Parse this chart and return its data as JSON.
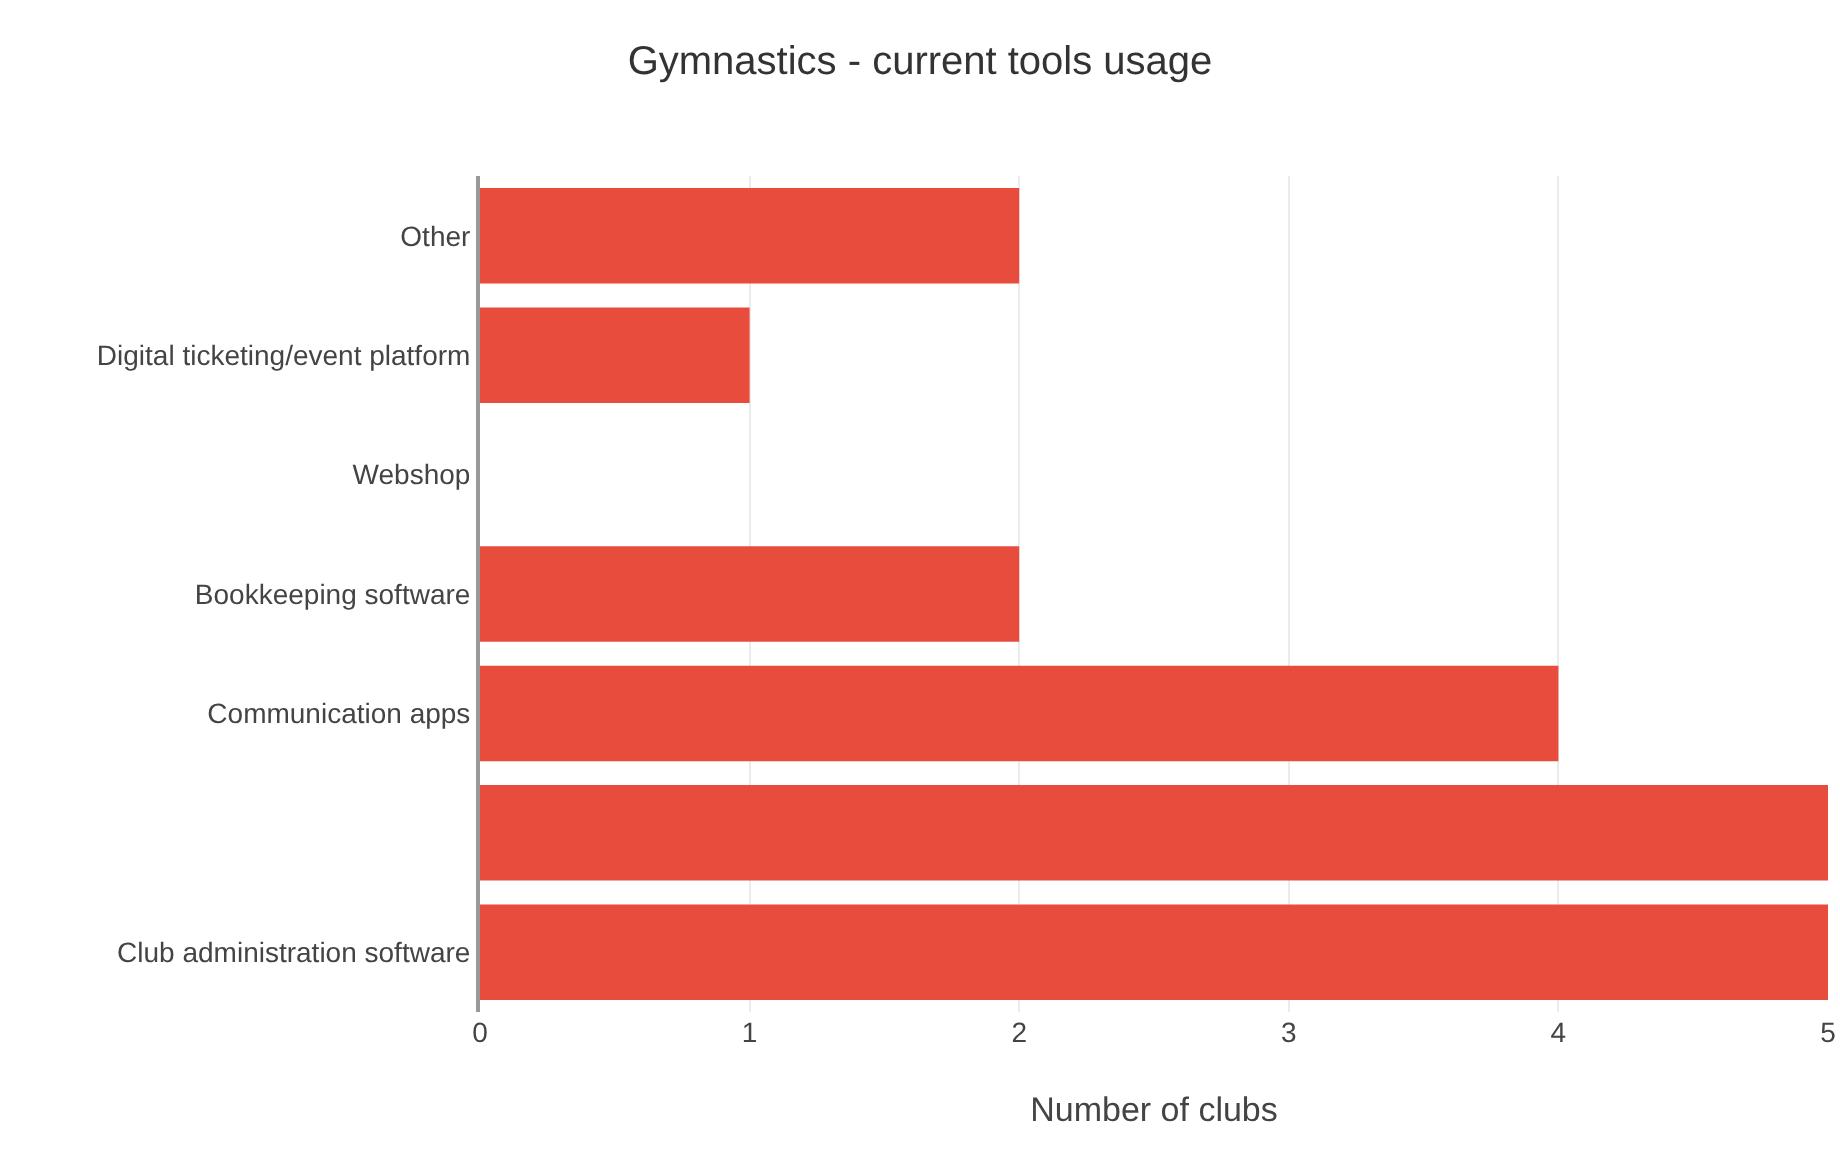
{
  "chart_data": {
    "type": "bar",
    "title": "Gymnastics - current tools usage",
    "xlabel": "Number of clubs",
    "orientation": "horizontal",
    "categories": [
      "Other",
      "Digital ticketing/event platform",
      "Webshop",
      "Bookkeeping software",
      "Communication apps",
      null,
      "Club administration software"
    ],
    "values": [
      2,
      1,
      0,
      2,
      4,
      5,
      5
    ],
    "color": "#e84c3d",
    "xlim": [
      0,
      5
    ],
    "xticks": [
      0,
      1,
      2,
      3,
      4,
      5
    ],
    "grid": "x"
  }
}
